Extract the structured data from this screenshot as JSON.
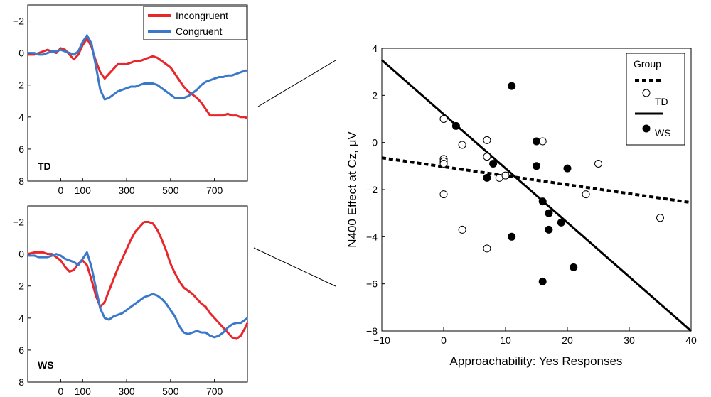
{
  "chart_data": [
    {
      "id": "td-erp",
      "type": "line",
      "panel_label": "TD",
      "y_inverted": true,
      "xlim": [
        -150,
        850
      ],
      "ylim": [
        -3,
        8
      ],
      "x_ticks": [
        0,
        100,
        300,
        500,
        700
      ],
      "y_ticks": [
        -2,
        0,
        2,
        4,
        6,
        8
      ],
      "legend": {
        "placement": "top-right",
        "entries": [
          "Incongruent",
          "Congruent"
        ]
      },
      "series": [
        {
          "name": "Incongruent",
          "color": "#e8262b",
          "x": [
            -150,
            -120,
            -100,
            -80,
            -60,
            -40,
            -20,
            0,
            20,
            40,
            60,
            80,
            100,
            120,
            140,
            160,
            180,
            200,
            220,
            240,
            260,
            280,
            300,
            320,
            340,
            360,
            380,
            400,
            420,
            440,
            460,
            480,
            500,
            520,
            540,
            560,
            580,
            600,
            620,
            640,
            660,
            680,
            700,
            720,
            740,
            760,
            780,
            800,
            820,
            840,
            850
          ],
          "y": [
            0.1,
            0.1,
            0.0,
            -0.1,
            -0.2,
            -0.1,
            0.0,
            -0.3,
            -0.2,
            0.1,
            0.4,
            0.1,
            -0.5,
            -0.9,
            -0.4,
            0.5,
            1.2,
            1.6,
            1.3,
            1.0,
            0.7,
            0.7,
            0.7,
            0.6,
            0.5,
            0.5,
            0.4,
            0.3,
            0.2,
            0.3,
            0.5,
            0.7,
            0.9,
            1.3,
            1.7,
            2.1,
            2.4,
            2.6,
            2.8,
            3.1,
            3.5,
            3.9,
            3.9,
            3.9,
            3.9,
            3.8,
            3.9,
            3.9,
            4.0,
            4.0,
            4.1
          ]
        },
        {
          "name": "Congruent",
          "color": "#3a78c9",
          "x": [
            -150,
            -120,
            -100,
            -80,
            -60,
            -40,
            -20,
            0,
            20,
            40,
            60,
            80,
            100,
            120,
            140,
            160,
            180,
            200,
            220,
            240,
            260,
            280,
            300,
            320,
            340,
            360,
            380,
            400,
            420,
            440,
            460,
            480,
            500,
            520,
            540,
            560,
            580,
            600,
            620,
            640,
            660,
            680,
            700,
            720,
            740,
            760,
            780,
            800,
            820,
            840,
            850
          ],
          "y": [
            0.0,
            0.0,
            0.1,
            0.1,
            0.0,
            -0.1,
            -0.1,
            -0.2,
            -0.1,
            0.0,
            0.1,
            -0.1,
            -0.7,
            -1.1,
            -0.6,
            0.8,
            2.3,
            2.9,
            2.8,
            2.6,
            2.4,
            2.3,
            2.2,
            2.1,
            2.1,
            2.0,
            1.9,
            1.9,
            1.9,
            2.0,
            2.2,
            2.4,
            2.6,
            2.8,
            2.8,
            2.8,
            2.7,
            2.5,
            2.3,
            2.0,
            1.8,
            1.7,
            1.6,
            1.5,
            1.5,
            1.4,
            1.4,
            1.3,
            1.2,
            1.1,
            1.1
          ]
        }
      ]
    },
    {
      "id": "ws-erp",
      "type": "line",
      "panel_label": "WS",
      "y_inverted": true,
      "xlim": [
        -150,
        850
      ],
      "ylim": [
        -3,
        8
      ],
      "x_ticks": [
        0,
        100,
        300,
        500,
        700
      ],
      "y_ticks": [
        -2,
        0,
        2,
        4,
        6,
        8
      ],
      "series": [
        {
          "name": "Incongruent",
          "color": "#e8262b",
          "x": [
            -150,
            -120,
            -100,
            -80,
            -60,
            -40,
            -20,
            0,
            20,
            40,
            60,
            80,
            100,
            120,
            140,
            160,
            180,
            200,
            220,
            240,
            260,
            280,
            300,
            320,
            340,
            360,
            380,
            400,
            420,
            440,
            460,
            480,
            500,
            520,
            540,
            560,
            580,
            600,
            620,
            640,
            660,
            680,
            700,
            720,
            740,
            760,
            780,
            800,
            820,
            840,
            850
          ],
          "y": [
            0.0,
            -0.1,
            -0.1,
            -0.1,
            0.0,
            0.0,
            0.2,
            0.4,
            0.8,
            1.1,
            1.0,
            0.6,
            0.4,
            0.7,
            1.6,
            2.6,
            3.3,
            3.0,
            2.3,
            1.6,
            0.9,
            0.3,
            -0.3,
            -0.9,
            -1.4,
            -1.7,
            -2.0,
            -2.0,
            -1.9,
            -1.5,
            -0.9,
            -0.2,
            0.6,
            1.2,
            1.7,
            2.1,
            2.3,
            2.5,
            2.8,
            3.1,
            3.3,
            3.7,
            4.0,
            4.3,
            4.6,
            4.9,
            5.2,
            5.3,
            5.1,
            4.6,
            4.3
          ]
        },
        {
          "name": "Congruent",
          "color": "#3a78c9",
          "x": [
            -150,
            -120,
            -100,
            -80,
            -60,
            -40,
            -20,
            0,
            20,
            40,
            60,
            80,
            100,
            120,
            140,
            160,
            180,
            200,
            220,
            240,
            260,
            280,
            300,
            320,
            340,
            360,
            380,
            400,
            420,
            440,
            460,
            480,
            500,
            520,
            540,
            560,
            580,
            600,
            620,
            640,
            660,
            680,
            700,
            720,
            740,
            760,
            780,
            800,
            820,
            840,
            850
          ],
          "y": [
            0.1,
            0.1,
            0.2,
            0.2,
            0.2,
            0.1,
            0.0,
            0.1,
            0.3,
            0.4,
            0.5,
            0.7,
            0.3,
            -0.1,
            0.8,
            2.1,
            3.4,
            4.0,
            4.1,
            3.9,
            3.8,
            3.7,
            3.5,
            3.3,
            3.1,
            2.9,
            2.7,
            2.6,
            2.5,
            2.6,
            2.8,
            3.1,
            3.5,
            3.9,
            4.5,
            4.9,
            5.0,
            4.9,
            4.8,
            4.9,
            4.9,
            5.1,
            5.2,
            5.1,
            4.9,
            4.6,
            4.4,
            4.3,
            4.3,
            4.1,
            4.0
          ]
        }
      ]
    },
    {
      "id": "n400-scatter",
      "type": "scatter",
      "xlabel": "Approachability: Yes Responses",
      "ylabel": "N400 Effect at Cz, μV",
      "xlim": [
        -10,
        40
      ],
      "ylim": [
        -8,
        4
      ],
      "x_ticks": [
        -10,
        0,
        10,
        20,
        30,
        40
      ],
      "y_ticks": [
        -8,
        -6,
        -4,
        -2,
        0,
        2,
        4
      ],
      "legend": {
        "placement": "top-right",
        "title": "Group",
        "entries": [
          "TD",
          "WS"
        ]
      },
      "series": [
        {
          "name": "TD",
          "marker": "open-circle",
          "x": [
            0,
            0,
            0,
            0,
            0,
            3,
            3,
            7,
            7,
            7,
            9,
            10,
            16,
            23,
            25,
            35
          ],
          "y": [
            1.0,
            -0.7,
            -0.8,
            -0.9,
            -2.2,
            -0.1,
            -3.7,
            0.1,
            -0.6,
            -4.5,
            -1.5,
            -1.4,
            0.05,
            -2.2,
            -0.9,
            -3.2
          ]
        },
        {
          "name": "WS",
          "marker": "filled-circle",
          "x": [
            2,
            7,
            8,
            11,
            11,
            15,
            15,
            16,
            16,
            17,
            17,
            19,
            20,
            21
          ],
          "y": [
            0.7,
            -1.5,
            -0.9,
            2.4,
            -4.0,
            0.05,
            -1.0,
            -2.5,
            -5.9,
            -3.0,
            -3.7,
            -3.4,
            -1.1,
            -5.3
          ]
        }
      ],
      "fit_lines": [
        {
          "group": "TD",
          "style": "dotted",
          "x": [
            -10,
            40
          ],
          "y": [
            -0.65,
            -2.55
          ]
        },
        {
          "group": "WS",
          "style": "solid",
          "x": [
            -10,
            40
          ],
          "y": [
            3.5,
            -8.0
          ]
        }
      ]
    }
  ]
}
